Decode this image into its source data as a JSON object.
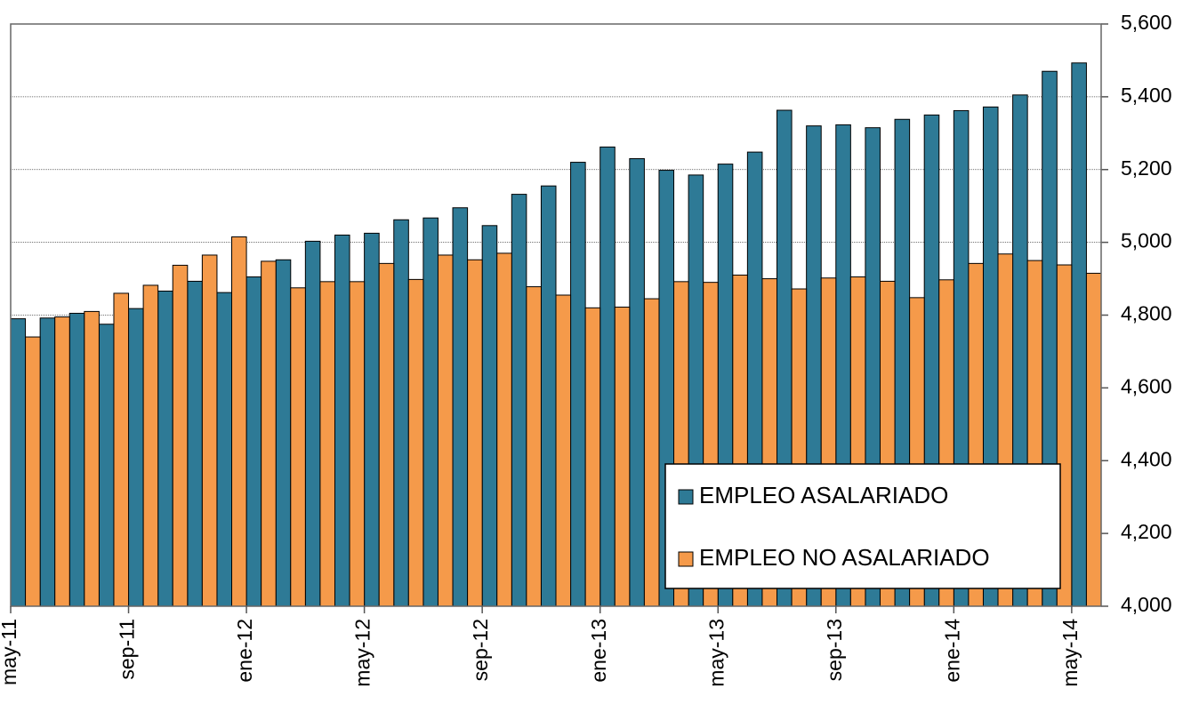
{
  "chart_data": {
    "type": "bar",
    "categories": [
      "may-11",
      null,
      null,
      null,
      "sep-11",
      null,
      null,
      null,
      "ene-12",
      null,
      null,
      null,
      "may-12",
      null,
      null,
      null,
      "sep-12",
      null,
      null,
      null,
      "ene-13",
      null,
      null,
      null,
      "may-13",
      null,
      null,
      null,
      "sep-13",
      null,
      null,
      null,
      "ene-14",
      null,
      null,
      null,
      "may-14"
    ],
    "series": [
      {
        "name": "EMPLEO ASALARIADO",
        "color": "#2e7a96",
        "values": [
          4790,
          4792,
          4805,
          4775,
          4818,
          4866,
          4893,
          4862,
          4905,
          4952,
          5003,
          5020,
          5025,
          5062,
          5067,
          5095,
          5046,
          5132,
          5155,
          5220,
          5262,
          5230,
          5198,
          5185,
          5215,
          5248,
          5363,
          5320,
          5323,
          5315,
          5338,
          5350,
          5362,
          5372,
          5405,
          5470,
          5493
        ]
      },
      {
        "name": "EMPLEO NO ASALARIADO",
        "color": "#f59a4a",
        "values": [
          4740,
          4795,
          4810,
          4860,
          4882,
          4937,
          4965,
          5015,
          4948,
          4875,
          4892,
          4892,
          4942,
          4898,
          4965,
          4952,
          4970,
          4878,
          4855,
          4820,
          4822,
          4845,
          4892,
          4890,
          4910,
          4900,
          4872,
          4902,
          4905,
          4893,
          4848,
          4897,
          4942,
          4968,
          4950,
          4938,
          4915
        ]
      }
    ],
    "ylim": [
      4000,
      5600
    ],
    "yticks": [
      {
        "value": 4000,
        "label": "4,000"
      },
      {
        "value": 4200,
        "label": "4,200"
      },
      {
        "value": 4400,
        "label": "4,400"
      },
      {
        "value": 4600,
        "label": "4,600"
      },
      {
        "value": 4800,
        "label": "4,800"
      },
      {
        "value": 5000,
        "label": "5,000"
      },
      {
        "value": 5200,
        "label": "5,200"
      },
      {
        "value": 5400,
        "label": "5,400"
      },
      {
        "value": 5600,
        "label": "5,600"
      }
    ],
    "grid": true,
    "legend": "lower right"
  }
}
